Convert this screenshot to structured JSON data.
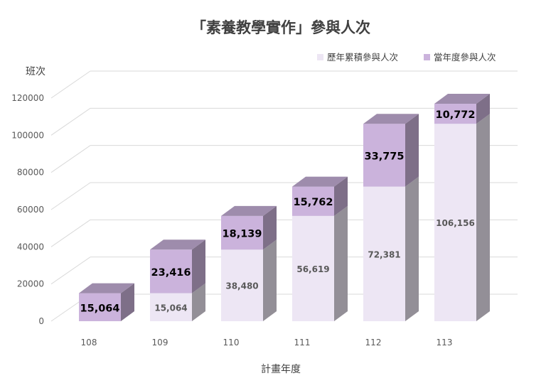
{
  "chart_data": {
    "type": "bar",
    "stacked": true,
    "style": "3d-column",
    "title": "「素養教學實作」參與人次",
    "xlabel": "計畫年度",
    "ylabel": "班次",
    "categories": [
      "108",
      "109",
      "110",
      "111",
      "112",
      "113"
    ],
    "ylim": [
      0,
      120000
    ],
    "yticks": [
      "0",
      "20000",
      "40000",
      "60000",
      "80000",
      "100000",
      "120000"
    ],
    "grid": true,
    "legend_position": "top-right",
    "series": [
      {
        "name": "歷年累積參與人次",
        "color": "#ede6f4",
        "values": [
          0,
          15064,
          38480,
          56619,
          72381,
          106156
        ],
        "labels": [
          "",
          "15,064",
          "38,480",
          "56,619",
          "72,381",
          "106,156"
        ]
      },
      {
        "name": "當年度參與人次",
        "color": "#cbb3dc",
        "values": [
          15064,
          23416,
          18139,
          15762,
          33775,
          10772
        ],
        "labels": [
          "15,064",
          "23,416",
          "18,139",
          "15,762",
          "33,775",
          "10,772"
        ]
      }
    ]
  }
}
